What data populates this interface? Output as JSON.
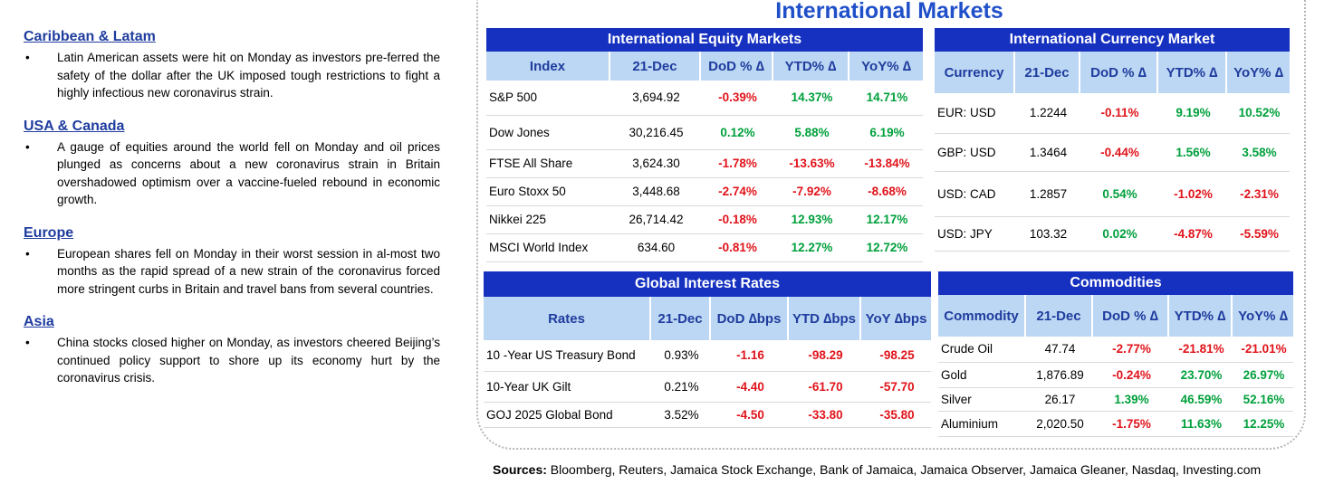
{
  "left": {
    "regions": [
      {
        "heading": "Caribbean & Latam",
        "bullet": "•",
        "text": "Latin American assets were hit on Monday as investors pre-ferred the safety of the dollar after the UK imposed tough restrictions to fight a highly infectious new coronavirus strain."
      },
      {
        "heading": "USA & Canada",
        "bullet": "•",
        "text": "A gauge of equities around the world fell on Monday and oil prices plunged as concerns about a new coronavirus strain in Britain overshadowed optimism over a vaccine-fueled rebound in economic growth."
      },
      {
        "heading": "Europe",
        "bullet": "•",
        "text": "European shares fell on Monday in their worst session in al-most two months as the rapid spread of a new strain of the coronavirus forced more stringent curbs in Britain and travel bans from several countries."
      },
      {
        "heading": "Asia",
        "bullet": "•",
        "text": "China stocks closed higher on Monday, as investors cheered Beijing’s continued policy support to shore up its economy hurt by the coronavirus crisis."
      }
    ]
  },
  "panel_title": "International Markets",
  "equity": {
    "title": "International Equity Markets",
    "headers": [
      "Index",
      "21-Dec",
      "DoD % ∆",
      "YTD% ∆",
      "YoY% ∆"
    ],
    "rows": [
      [
        "S&P 500",
        "3,694.92",
        "-0.39%",
        "14.37%",
        "14.71%"
      ],
      [
        "Dow Jones",
        "30,216.45",
        "0.12%",
        "5.88%",
        "6.19%"
      ],
      [
        "FTSE All Share",
        "3,624.30",
        "-1.78%",
        "-13.63%",
        "-13.84%"
      ],
      [
        "Euro Stoxx 50",
        "3,448.68",
        "-2.74%",
        "-7.92%",
        "-8.68%"
      ],
      [
        "Nikkei 225",
        "26,714.42",
        "-0.18%",
        "12.93%",
        "12.17%"
      ],
      [
        "MSCI World Index",
        "634.60",
        "-0.81%",
        "12.27%",
        "12.72%"
      ]
    ]
  },
  "currency": {
    "title": "International Currency Market",
    "headers": [
      "Currency",
      "21-Dec",
      "DoD % ∆",
      "YTD% ∆",
      "YoY% ∆"
    ],
    "rows": [
      [
        "EUR: USD",
        "1.2244",
        "-0.11%",
        "9.19%",
        "10.52%"
      ],
      [
        "GBP: USD",
        "1.3464",
        "-0.44%",
        "1.56%",
        "3.58%"
      ],
      [
        "USD: CAD",
        "1.2857",
        "0.54%",
        "-1.02%",
        "-2.31%"
      ],
      [
        "USD: JPY",
        "103.32",
        "0.02%",
        "-4.87%",
        "-5.59%"
      ]
    ]
  },
  "rates": {
    "title": "Global Interest Rates",
    "headers": [
      "Rates",
      "21-Dec",
      "DoD ∆bps",
      "YTD ∆bps",
      "YoY ∆bps"
    ],
    "rows": [
      [
        "10 -Year US Treasury Bond",
        "0.93%",
        "-1.16",
        "-98.29",
        "-98.25"
      ],
      [
        "10-Year UK Gilt",
        "0.21%",
        "-4.40",
        "-61.70",
        "-57.70"
      ],
      [
        "GOJ 2025 Global Bond",
        "3.52%",
        "-4.50",
        "-33.80",
        "-35.80"
      ]
    ]
  },
  "commodities": {
    "title": "Commodities",
    "headers": [
      "Commodity",
      "21-Dec",
      "DoD % ∆",
      "YTD% ∆",
      "YoY% ∆"
    ],
    "rows": [
      [
        "Crude Oil",
        "47.74",
        "-2.77%",
        "-21.81%",
        "-21.01%"
      ],
      [
        "Gold",
        "1,876.89",
        "-0.24%",
        "23.70%",
        "26.97%"
      ],
      [
        "Silver",
        "26.17",
        "1.39%",
        "46.59%",
        "52.16%"
      ],
      [
        "Aluminium",
        "2,020.50",
        "-1.75%",
        "11.63%",
        "12.25%"
      ]
    ]
  },
  "sources": {
    "label": "Sources:",
    "text": " Bloomberg, Reuters, Jamaica Stock Exchange, Bank of Jamaica, Jamaica Observer, Jamaica Gleaner, Nasdaq, Investing.com"
  },
  "colors": {
    "negative": "#e0141b",
    "positive": "#00a03c",
    "header_bar": "#1631c0",
    "header_cols": "#bcd7f3"
  }
}
